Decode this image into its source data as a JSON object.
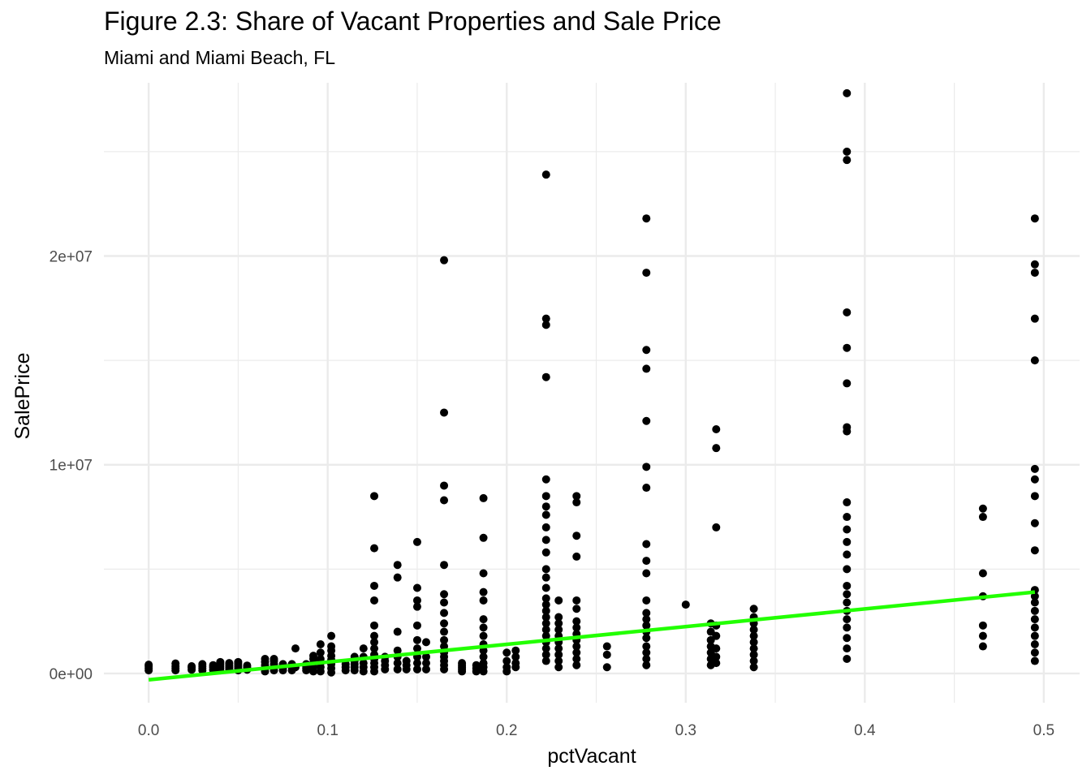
{
  "chart_data": {
    "type": "scatter",
    "title": "Figure 2.3: Share of Vacant Properties and Sale Price",
    "subtitle": "Miami and Miami Beach, FL",
    "xlabel": "pctVacant",
    "ylabel": "SalePrice",
    "xlim": [
      -0.025,
      0.52
    ],
    "ylim": [
      -1400000,
      28300000
    ],
    "x_ticks": [
      0.0,
      0.1,
      0.2,
      0.3,
      0.4,
      0.5
    ],
    "x_tick_labels": [
      "0.0",
      "0.1",
      "0.2",
      "0.3",
      "0.4",
      "0.5"
    ],
    "y_ticks": [
      0,
      10000000,
      20000000
    ],
    "y_tick_labels": [
      "0e+00",
      "1e+07",
      "2e+07"
    ],
    "grid": true,
    "legend": "none",
    "colors": {
      "points": "#000000",
      "trend_line": "#22ff00",
      "grid": "#ebebeb"
    },
    "trend_line": {
      "x": [
        0.0,
        0.495
      ],
      "y": [
        -300000,
        3900000
      ]
    },
    "groups": [
      {
        "x": 0.0,
        "y": [
          150000,
          250000,
          350000,
          420000
        ]
      },
      {
        "x": 0.015,
        "y": [
          150000,
          250000,
          350000,
          480000
        ]
      },
      {
        "x": 0.024,
        "y": [
          180000,
          280000,
          350000
        ]
      },
      {
        "x": 0.03,
        "y": [
          150000,
          250000,
          350000,
          450000
        ]
      },
      {
        "x": 0.036,
        "y": [
          180000,
          300000,
          400000
        ]
      },
      {
        "x": 0.04,
        "y": [
          150000,
          250000,
          350000,
          450000,
          550000
        ]
      },
      {
        "x": 0.045,
        "y": [
          200000,
          300000,
          400000,
          500000
        ]
      },
      {
        "x": 0.05,
        "y": [
          150000,
          250000,
          350000,
          450000,
          550000
        ]
      },
      {
        "x": 0.055,
        "y": [
          180000,
          280000,
          380000
        ]
      },
      {
        "x": 0.065,
        "y": [
          100000,
          250000,
          400000,
          550000,
          700000
        ]
      },
      {
        "x": 0.07,
        "y": [
          150000,
          300000,
          450000,
          600000,
          700000
        ]
      },
      {
        "x": 0.075,
        "y": [
          150000,
          250000,
          350000,
          450000
        ]
      },
      {
        "x": 0.08,
        "y": [
          150000,
          300000,
          450000
        ]
      },
      {
        "x": 0.082,
        "y": [
          300000,
          1200000
        ]
      },
      {
        "x": 0.088,
        "y": [
          150000,
          250000,
          350000,
          450000
        ]
      },
      {
        "x": 0.092,
        "y": [
          100000,
          300000,
          500000,
          700000,
          850000
        ]
      },
      {
        "x": 0.096,
        "y": [
          100000,
          300000,
          500000,
          700000,
          1000000,
          1400000
        ]
      },
      {
        "x": 0.102,
        "y": [
          50000,
          250000,
          450000,
          650000,
          850000,
          1100000,
          1300000,
          1800000
        ]
      },
      {
        "x": 0.11,
        "y": [
          150000,
          300000,
          450000
        ]
      },
      {
        "x": 0.115,
        "y": [
          150000,
          300000,
          450000,
          600000,
          800000
        ]
      },
      {
        "x": 0.12,
        "y": [
          100000,
          300000,
          500000,
          800000,
          1200000
        ]
      },
      {
        "x": 0.126,
        "y": [
          100000,
          300000,
          500000,
          700000,
          900000,
          1200000,
          1500000,
          1800000,
          2300000,
          3500000,
          4200000,
          6000000,
          8500000
        ]
      },
      {
        "x": 0.132,
        "y": [
          200000,
          400000,
          600000,
          800000
        ]
      },
      {
        "x": 0.139,
        "y": [
          200000,
          500000,
          800000,
          1100000,
          2000000,
          4600000,
          5200000
        ]
      },
      {
        "x": 0.144,
        "y": [
          200000,
          400000,
          600000
        ]
      },
      {
        "x": 0.15,
        "y": [
          200000,
          500000,
          800000,
          1200000,
          1600000,
          2300000,
          3200000,
          3500000,
          4100000,
          6300000
        ]
      },
      {
        "x": 0.155,
        "y": [
          200000,
          500000,
          800000,
          1500000
        ]
      },
      {
        "x": 0.165,
        "y": [
          200000,
          400000,
          600000,
          800000,
          1000000,
          1300000,
          1600000,
          2000000,
          2400000,
          2900000,
          3400000,
          3800000,
          5200000,
          8300000,
          9000000,
          12500000,
          19800000
        ]
      },
      {
        "x": 0.175,
        "y": [
          100000,
          200000,
          300000,
          400000,
          500000
        ]
      },
      {
        "x": 0.183,
        "y": [
          100000,
          250000,
          400000
        ]
      },
      {
        "x": 0.187,
        "y": [
          100000,
          300000,
          500000,
          800000,
          1100000,
          1400000,
          1800000,
          2200000,
          2600000,
          3500000,
          3900000,
          4800000,
          6500000,
          8400000
        ]
      },
      {
        "x": 0.2,
        "y": [
          100000,
          300000,
          600000,
          1000000
        ]
      },
      {
        "x": 0.205,
        "y": [
          300000,
          500000,
          800000,
          1100000
        ]
      },
      {
        "x": 0.222,
        "y": [
          600000,
          900000,
          1200000,
          1500000,
          1800000,
          2100000,
          2400000,
          2700000,
          3000000,
          3300000,
          3600000,
          4100000,
          4600000,
          5000000,
          5800000,
          6400000,
          7000000,
          7600000,
          8000000,
          8500000,
          9300000,
          14200000,
          16700000,
          17000000,
          23900000
        ]
      },
      {
        "x": 0.229,
        "y": [
          300000,
          600000,
          900000,
          1200000,
          1500000,
          1800000,
          2100000,
          2400000,
          2700000,
          3500000
        ]
      },
      {
        "x": 0.239,
        "y": [
          400000,
          700000,
          1000000,
          1300000,
          1600000,
          1900000,
          2200000,
          2500000,
          3100000,
          3500000,
          5600000,
          6600000,
          8200000,
          8500000
        ]
      },
      {
        "x": 0.256,
        "y": [
          300000,
          900000,
          1300000
        ]
      },
      {
        "x": 0.278,
        "y": [
          400000,
          700000,
          1000000,
          1300000,
          1700000,
          2000000,
          2300000,
          2600000,
          2900000,
          3500000,
          4800000,
          5400000,
          6200000,
          8900000,
          9900000,
          12100000,
          14600000,
          15500000,
          19200000,
          21800000
        ]
      },
      {
        "x": 0.3,
        "y": [
          3300000
        ]
      },
      {
        "x": 0.314,
        "y": [
          400000,
          700000,
          1000000,
          1300000,
          1600000,
          2000000,
          2400000
        ]
      },
      {
        "x": 0.317,
        "y": [
          500000,
          800000,
          1200000,
          1800000,
          2300000,
          7000000,
          10800000,
          11700000
        ]
      },
      {
        "x": 0.338,
        "y": [
          300000,
          600000,
          900000,
          1200000,
          1500000,
          1800000,
          2100000,
          2400000,
          2700000,
          3100000
        ]
      },
      {
        "x": 0.39,
        "y": [
          700000,
          1200000,
          1700000,
          2200000,
          2600000,
          3000000,
          3400000,
          3800000,
          4200000,
          5000000,
          5700000,
          6300000,
          6900000,
          7500000,
          8200000,
          11600000,
          11800000,
          13900000,
          15600000,
          17300000,
          24600000,
          25000000,
          27800000
        ]
      },
      {
        "x": 0.466,
        "y": [
          1300000,
          1800000,
          2300000,
          3700000,
          4800000,
          7500000,
          7900000
        ]
      },
      {
        "x": 0.495,
        "y": [
          600000,
          1000000,
          1400000,
          1800000,
          2200000,
          2600000,
          3000000,
          3400000,
          3700000,
          4000000,
          5900000,
          7200000,
          8500000,
          9300000,
          9800000,
          15000000,
          17000000,
          19200000,
          19600000,
          21800000
        ]
      }
    ]
  }
}
